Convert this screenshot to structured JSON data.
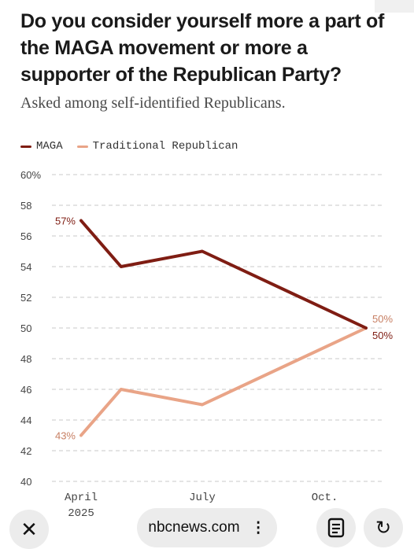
{
  "title": "Do you consider yourself more a part of the MAGA movement or more a supporter of the Republican Party?",
  "subtitle": "Asked among self-identified Republicans.",
  "legend": [
    {
      "label": "MAGA",
      "color": "#7f1d13"
    },
    {
      "label": "Traditional Republican",
      "color": "#e9a487"
    }
  ],
  "chart_data": {
    "type": "line",
    "x": [
      "April 2025",
      "May 2025",
      "July 2025",
      "Nov 2025"
    ],
    "x_ticks": [
      {
        "x": "April 2025",
        "label": [
          "April",
          "2025"
        ]
      },
      {
        "x": "July 2025",
        "label": [
          "July"
        ]
      },
      {
        "x": "Oct 2025",
        "label": [
          "Oct."
        ]
      }
    ],
    "ylim": [
      40,
      60
    ],
    "y_ticks": [
      "40",
      "42",
      "44",
      "46",
      "48",
      "50",
      "52",
      "54",
      "56",
      "58",
      "60%"
    ],
    "grid": true,
    "series": [
      {
        "name": "MAGA",
        "color": "#7f1d13",
        "values": [
          57,
          54,
          55,
          50
        ],
        "labels": [
          {
            "index": 0,
            "text": "57%"
          },
          {
            "index": 3,
            "text": "50%"
          }
        ]
      },
      {
        "name": "Traditional Republican",
        "color": "#e9a487",
        "values": [
          43,
          46,
          45,
          50
        ],
        "labels": [
          {
            "index": 0,
            "text": "43%"
          },
          {
            "index": 3,
            "text": "50%"
          }
        ]
      }
    ]
  },
  "browser": {
    "url": "nbcnews.com",
    "close_icon": "close-icon",
    "menu_icon": "more-vertical-icon",
    "reader_icon": "reader-icon",
    "reload_icon": "reload-icon",
    "close_glyph": "✕",
    "reload_glyph": "↻",
    "dots_glyph": "⋮"
  }
}
